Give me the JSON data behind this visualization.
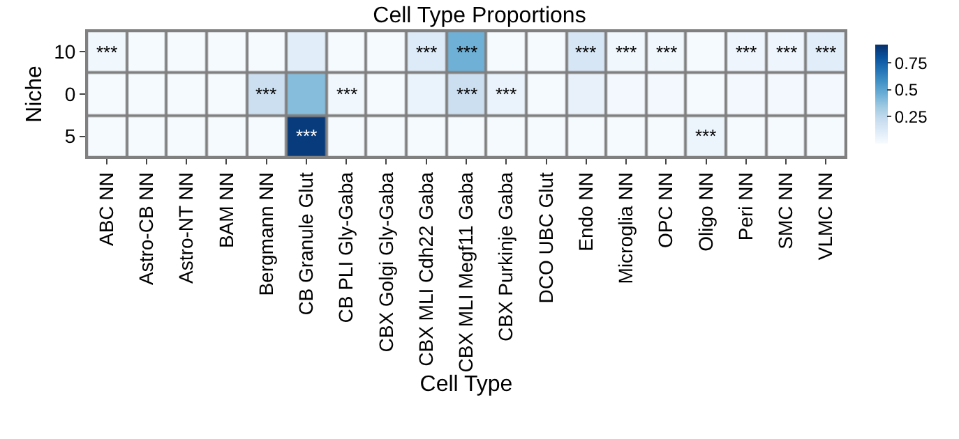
{
  "chart_data": {
    "type": "heatmap",
    "title": "Cell Type Proportions",
    "xlabel": "Cell Type",
    "ylabel": "Niche",
    "categories": [
      "ABC NN",
      "Astro-CB NN",
      "Astro-NT NN",
      "BAM NN",
      "Bergmann NN",
      "CB Granule Glut",
      "CB PLI Gly-Gaba",
      "CBX Golgi Gly-Gaba",
      "CBX MLI Cdh22 Gaba",
      "CBX MLI Megf11 Gaba",
      "CBX Purkinje Gaba",
      "DCO UBC Glut",
      "Endo NN",
      "Microglia NN",
      "OPC NN",
      "Oligo NN",
      "Peri NN",
      "SMC NN",
      "VLMC NN"
    ],
    "y_categories": [
      "10",
      "0",
      "5"
    ],
    "cells": [
      [
        0.03,
        0.01,
        0.01,
        0.01,
        0.01,
        0.1,
        0.01,
        0.01,
        0.12,
        0.45,
        0.01,
        0.01,
        0.15,
        0.03,
        0.03,
        0.01,
        0.04,
        0.04,
        0.1
      ],
      [
        0.01,
        0.01,
        0.01,
        0.01,
        0.2,
        0.4,
        0.03,
        0.01,
        0.06,
        0.2,
        0.06,
        0.01,
        0.07,
        0.02,
        0.02,
        0.01,
        0.02,
        0.02,
        0.02
      ],
      [
        0.01,
        0.01,
        0.01,
        0.01,
        0.01,
        0.88,
        0.01,
        0.01,
        0.01,
        0.01,
        0.01,
        0.01,
        0.01,
        0.01,
        0.01,
        0.05,
        0.01,
        0.01,
        0.01
      ]
    ],
    "cell_labels": [
      [
        "***",
        null,
        null,
        null,
        null,
        null,
        null,
        null,
        "***",
        "***",
        null,
        null,
        "***",
        "***",
        "***",
        null,
        "***",
        "***",
        "***"
      ],
      [
        null,
        null,
        null,
        null,
        "***",
        null,
        "***",
        null,
        null,
        "***",
        "***",
        null,
        null,
        null,
        null,
        null,
        null,
        null,
        null
      ],
      [
        null,
        null,
        null,
        null,
        null,
        "***",
        null,
        null,
        null,
        null,
        null,
        null,
        null,
        null,
        null,
        "***",
        null,
        null,
        null
      ]
    ],
    "clim": [
      0,
      0.92
    ],
    "cticks": [
      0.25,
      0.5,
      0.75
    ]
  }
}
